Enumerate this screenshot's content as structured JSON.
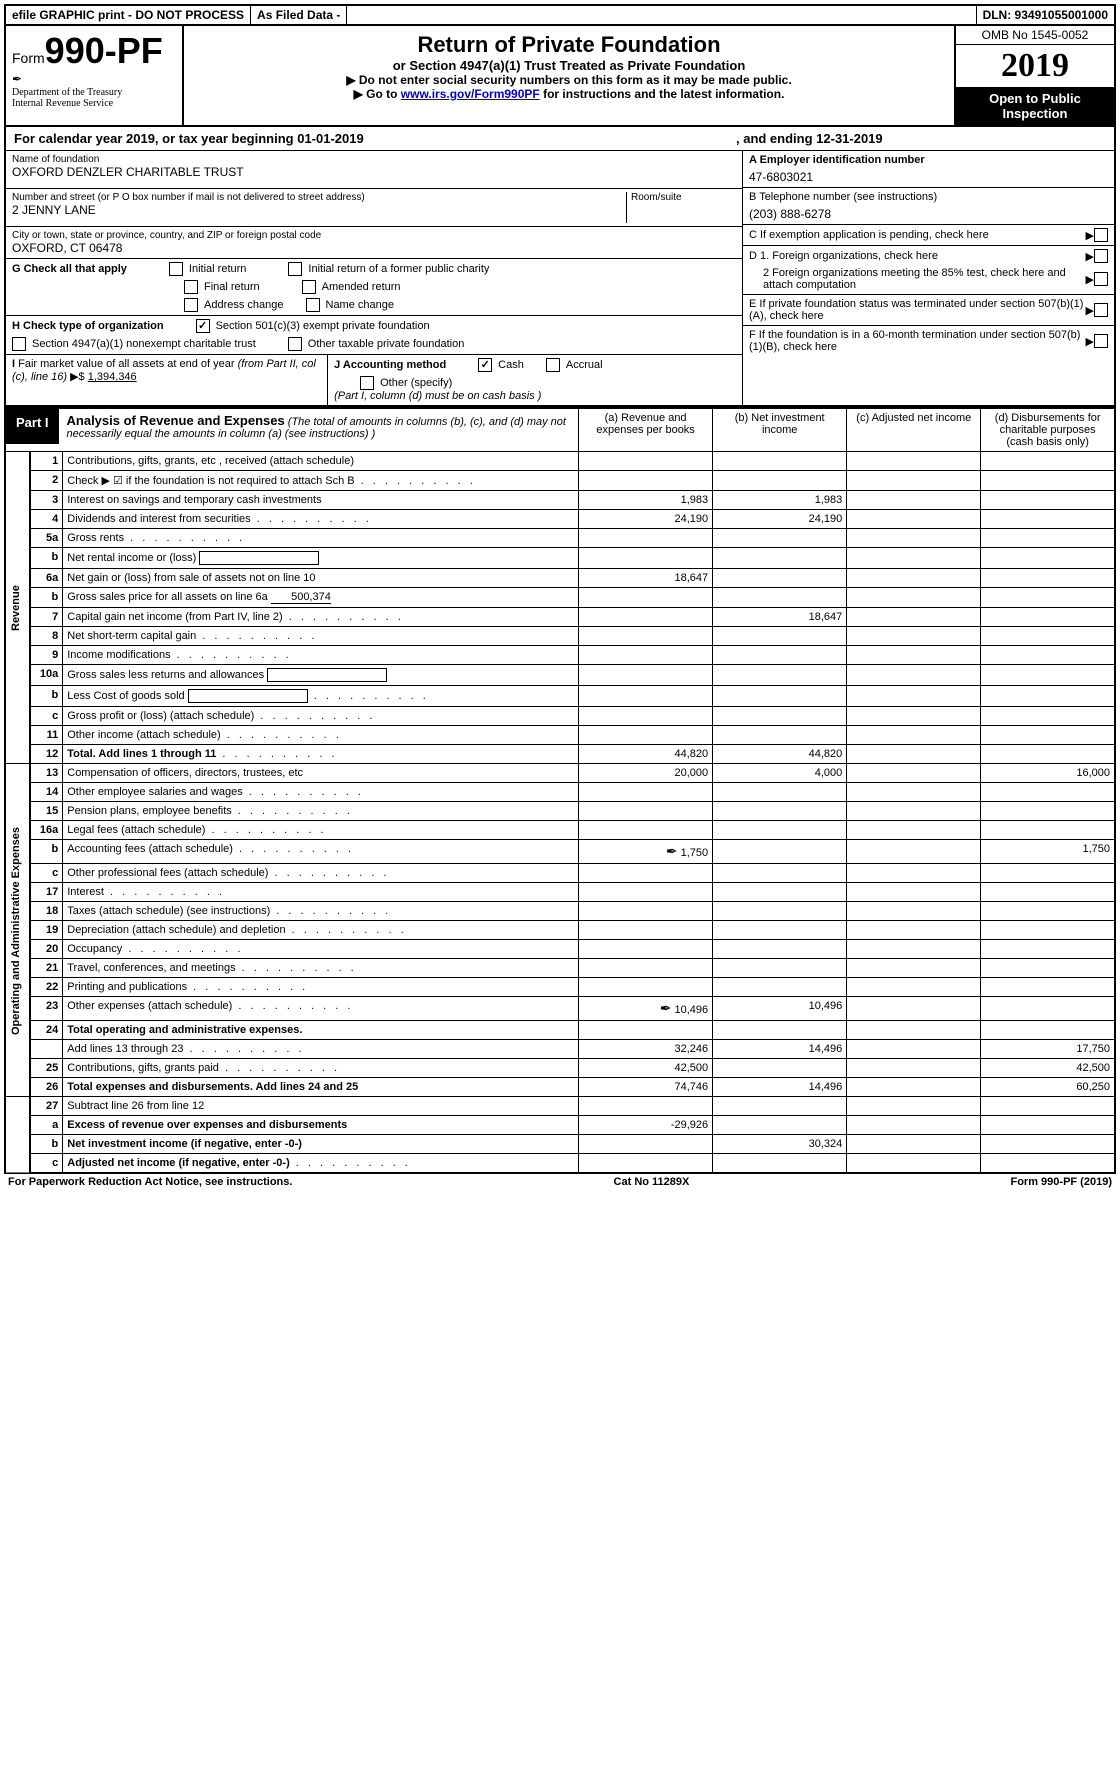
{
  "header_bar": {
    "efile": "efile GRAPHIC print - DO NOT PROCESS",
    "as_filed": "As Filed Data -",
    "dln": "DLN: 93491055001000"
  },
  "form_header": {
    "form_prefix": "Form",
    "form_number": "990-PF",
    "dept1": "Department of the Treasury",
    "dept2": "Internal Revenue Service",
    "title": "Return of Private Foundation",
    "subtitle": "or Section 4947(a)(1) Trust Treated as Private Foundation",
    "instr1": "▶ Do not enter social security numbers on this form as it may be made public.",
    "instr2_pre": "▶ Go to ",
    "instr2_link": "www.irs.gov/Form990PF",
    "instr2_post": " for instructions and the latest information.",
    "omb": "OMB No 1545-0052",
    "year": "2019",
    "open_public": "Open to Public Inspection"
  },
  "cal_year": {
    "text1": "For calendar year 2019, or tax year beginning 01-01-2019",
    "text2": ", and ending 12-31-2019"
  },
  "info_left": {
    "name_label": "Name of foundation",
    "name_value": "OXFORD DENZLER CHARITABLE TRUST",
    "addr_label": "Number and street (or P O  box number if mail is not delivered to street address)",
    "room_label": "Room/suite",
    "addr_value": "2 JENNY LANE",
    "city_label": "City or town, state or province, country, and ZIP or foreign postal code",
    "city_value": "OXFORD, CT  06478",
    "G_label": "G Check all that apply",
    "G_opts": [
      "Initial return",
      "Initial return of a former public charity",
      "Final return",
      "Amended return",
      "Address change",
      "Name change"
    ],
    "H_label": "H Check type of organization",
    "H_opt1": "Section 501(c)(3) exempt private foundation",
    "H_opt2": "Section 4947(a)(1) nonexempt charitable trust",
    "H_opt3": "Other taxable private foundation",
    "I_label": "I Fair market value of all assets at end of year (from Part II, col  (c), line 16) ▶$ ",
    "I_value": "1,394,346",
    "J_label": "J Accounting method",
    "J_cash": "Cash",
    "J_accrual": "Accrual",
    "J_other": "Other (specify)",
    "J_note": "(Part I, column (d) must be on cash basis )"
  },
  "info_right": {
    "A_label": "A Employer identification number",
    "A_value": "47-6803021",
    "B_label": "B Telephone number (see instructions)",
    "B_value": "(203) 888-6278",
    "C_label": "C If exemption application is pending, check here",
    "D1_label": "D 1. Foreign organizations, check here",
    "D2_label": "2 Foreign organizations meeting the 85% test, check here and attach computation",
    "E_label": "E  If private foundation status was terminated under section 507(b)(1)(A), check here",
    "F_label": "F  If the foundation is in a 60-month termination under section 507(b)(1)(B), check here"
  },
  "part1": {
    "label": "Part I",
    "title": "Analysis of Revenue and Expenses",
    "note": "(The total of amounts in columns (b), (c), and (d) may not necessarily equal the amounts in column (a) (see instructions) )",
    "cols": {
      "a": "(a) Revenue and expenses per books",
      "b": "(b) Net investment income",
      "c": "(c) Adjusted net income",
      "d": "(d) Disbursements for charitable purposes (cash basis only)"
    },
    "side_rev": "Revenue",
    "side_exp": "Operating and Administrative Expenses"
  },
  "rows": [
    {
      "n": "1",
      "desc": "Contributions, gifts, grants, etc , received (attach schedule)",
      "a": "",
      "b": "",
      "c": "",
      "d": ""
    },
    {
      "n": "2",
      "desc": "Check ▶ ☑ if the foundation is not required to attach Sch  B",
      "a": "",
      "b": "",
      "c": "",
      "d": "",
      "dots": true
    },
    {
      "n": "3",
      "desc": "Interest on savings and temporary cash investments",
      "a": "1,983",
      "b": "1,983",
      "c": "",
      "d": ""
    },
    {
      "n": "4",
      "desc": "Dividends and interest from securities",
      "a": "24,190",
      "b": "24,190",
      "c": "",
      "d": "",
      "dots": true
    },
    {
      "n": "5a",
      "desc": "Gross rents",
      "a": "",
      "b": "",
      "c": "",
      "d": "",
      "dots": true
    },
    {
      "n": "b",
      "desc": "Net rental income or (loss)",
      "a": "",
      "b": "",
      "c": "",
      "d": "",
      "inline": true
    },
    {
      "n": "6a",
      "desc": "Net gain or (loss) from sale of assets not on line 10",
      "a": "18,647",
      "b": "",
      "c": "",
      "d": ""
    },
    {
      "n": "b",
      "desc": "Gross sales price for all assets on line 6a",
      "inline_val": "500,374",
      "a": "",
      "b": "",
      "c": "",
      "d": ""
    },
    {
      "n": "7",
      "desc": "Capital gain net income (from Part IV, line 2)",
      "a": "",
      "b": "18,647",
      "c": "",
      "d": "",
      "dots": true
    },
    {
      "n": "8",
      "desc": "Net short-term capital gain",
      "a": "",
      "b": "",
      "c": "",
      "d": "",
      "dots": true
    },
    {
      "n": "9",
      "desc": "Income modifications",
      "a": "",
      "b": "",
      "c": "",
      "d": "",
      "dots": true
    },
    {
      "n": "10a",
      "desc": "Gross sales less returns and allowances",
      "a": "",
      "b": "",
      "c": "",
      "d": "",
      "inline": true
    },
    {
      "n": "b",
      "desc": "Less  Cost of goods sold",
      "a": "",
      "b": "",
      "c": "",
      "d": "",
      "inline": true,
      "dots": true
    },
    {
      "n": "c",
      "desc": "Gross profit or (loss) (attach schedule)",
      "a": "",
      "b": "",
      "c": "",
      "d": "",
      "dots": true
    },
    {
      "n": "11",
      "desc": "Other income (attach schedule)",
      "a": "",
      "b": "",
      "c": "",
      "d": "",
      "dots": true
    },
    {
      "n": "12",
      "desc": "Total. Add lines 1 through 11",
      "a": "44,820",
      "b": "44,820",
      "c": "",
      "d": "",
      "bold": true,
      "dots": true
    }
  ],
  "exp_rows": [
    {
      "n": "13",
      "desc": "Compensation of officers, directors, trustees, etc",
      "a": "20,000",
      "b": "4,000",
      "c": "",
      "d": "16,000"
    },
    {
      "n": "14",
      "desc": "Other employee salaries and wages",
      "a": "",
      "b": "",
      "c": "",
      "d": "",
      "dots": true
    },
    {
      "n": "15",
      "desc": "Pension plans, employee benefits",
      "a": "",
      "b": "",
      "c": "",
      "d": "",
      "dots": true
    },
    {
      "n": "16a",
      "desc": "Legal fees (attach schedule)",
      "a": "",
      "b": "",
      "c": "",
      "d": "",
      "dots": true
    },
    {
      "n": "b",
      "desc": "Accounting fees (attach schedule)",
      "a": "1,750",
      "b": "",
      "c": "",
      "d": "1,750",
      "dots": true,
      "link": true
    },
    {
      "n": "c",
      "desc": "Other professional fees (attach schedule)",
      "a": "",
      "b": "",
      "c": "",
      "d": "",
      "dots": true
    },
    {
      "n": "17",
      "desc": "Interest",
      "a": "",
      "b": "",
      "c": "",
      "d": "",
      "dots": true
    },
    {
      "n": "18",
      "desc": "Taxes (attach schedule) (see instructions)",
      "a": "",
      "b": "",
      "c": "",
      "d": "",
      "dots": true
    },
    {
      "n": "19",
      "desc": "Depreciation (attach schedule) and depletion",
      "a": "",
      "b": "",
      "c": "",
      "d": "",
      "dots": true
    },
    {
      "n": "20",
      "desc": "Occupancy",
      "a": "",
      "b": "",
      "c": "",
      "d": "",
      "dots": true
    },
    {
      "n": "21",
      "desc": "Travel, conferences, and meetings",
      "a": "",
      "b": "",
      "c": "",
      "d": "",
      "dots": true
    },
    {
      "n": "22",
      "desc": "Printing and publications",
      "a": "",
      "b": "",
      "c": "",
      "d": "",
      "dots": true
    },
    {
      "n": "23",
      "desc": "Other expenses (attach schedule)",
      "a": "10,496",
      "b": "10,496",
      "c": "",
      "d": "",
      "dots": true,
      "link": true
    },
    {
      "n": "24",
      "desc": "Total operating and administrative expenses.",
      "a": "",
      "b": "",
      "c": "",
      "d": "",
      "bold": true
    },
    {
      "n": "",
      "desc": "Add lines 13 through 23",
      "a": "32,246",
      "b": "14,496",
      "c": "",
      "d": "17,750",
      "dots": true
    },
    {
      "n": "25",
      "desc": "Contributions, gifts, grants paid",
      "a": "42,500",
      "b": "",
      "c": "",
      "d": "42,500",
      "dots": true
    },
    {
      "n": "26",
      "desc": "Total expenses and disbursements. Add lines 24 and 25",
      "a": "74,746",
      "b": "14,496",
      "c": "",
      "d": "60,250",
      "bold": true
    }
  ],
  "net_rows": [
    {
      "n": "27",
      "desc": "Subtract line 26 from line 12",
      "a": "",
      "b": "",
      "c": "",
      "d": ""
    },
    {
      "n": "a",
      "desc": "Excess of revenue over expenses and disbursements",
      "a": "-29,926",
      "b": "",
      "c": "",
      "d": "",
      "bold": true
    },
    {
      "n": "b",
      "desc": "Net investment income (if negative, enter -0-)",
      "a": "",
      "b": "30,324",
      "c": "",
      "d": "",
      "bold": true
    },
    {
      "n": "c",
      "desc": "Adjusted net income (if negative, enter -0-)",
      "a": "",
      "b": "",
      "c": "",
      "d": "",
      "bold": true,
      "dots": true
    }
  ],
  "footer": {
    "left": "For Paperwork Reduction Act Notice, see instructions.",
    "mid": "Cat  No  11289X",
    "right": "Form 990-PF (2019)"
  }
}
